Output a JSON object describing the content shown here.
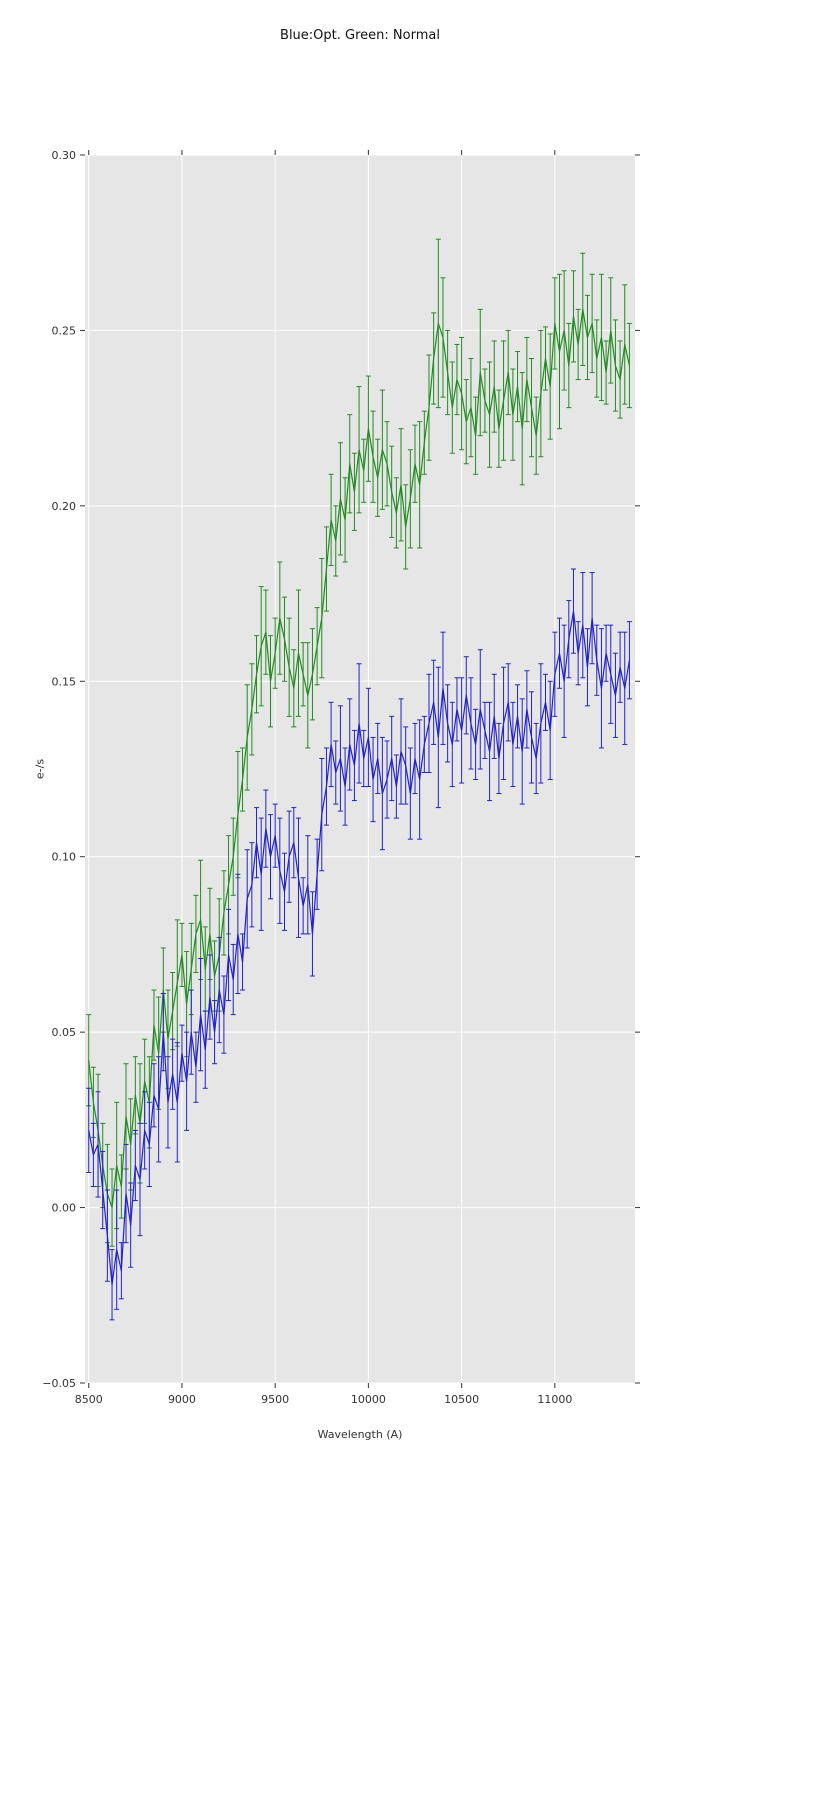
{
  "chart_data": {
    "type": "line",
    "title": "Blue:Opt. Green: Normal",
    "xlabel": "Wavelength (A)",
    "ylabel": "e-/s",
    "xlim": [
      8480,
      11430
    ],
    "ylim": [
      -0.05,
      0.3
    ],
    "grid": true,
    "legend": "none",
    "axes_bg": "#e6e6e6",
    "grid_color": "#ffffff",
    "tick_color": "#333333",
    "xticks": [
      {
        "value": 8500,
        "label": "8500"
      },
      {
        "value": 9000,
        "label": "9000"
      },
      {
        "value": 9500,
        "label": "9500"
      },
      {
        "value": 10000,
        "label": "10000"
      },
      {
        "value": 10500,
        "label": "10500"
      },
      {
        "value": 11000,
        "label": "11000"
      }
    ],
    "yticks": [
      {
        "value": -0.05,
        "label": "−0.05"
      },
      {
        "value": 0.0,
        "label": "0.00"
      },
      {
        "value": 0.05,
        "label": "0.05"
      },
      {
        "value": 0.1,
        "label": "0.10"
      },
      {
        "value": 0.15,
        "label": "0.15"
      },
      {
        "value": 0.2,
        "label": "0.20"
      },
      {
        "value": 0.25,
        "label": "0.25"
      },
      {
        "value": 0.3,
        "label": "0.30"
      }
    ],
    "x": [
      8500,
      8525,
      8550,
      8575,
      8600,
      8625,
      8650,
      8675,
      8700,
      8725,
      8750,
      8775,
      8800,
      8825,
      8850,
      8875,
      8900,
      8925,
      8950,
      8975,
      9000,
      9025,
      9050,
      9075,
      9100,
      9125,
      9150,
      9175,
      9200,
      9225,
      9250,
      9275,
      9300,
      9325,
      9350,
      9375,
      9400,
      9425,
      9450,
      9475,
      9500,
      9525,
      9550,
      9575,
      9600,
      9625,
      9650,
      9675,
      9700,
      9725,
      9750,
      9775,
      9800,
      9825,
      9850,
      9875,
      9900,
      9925,
      9950,
      9975,
      10000,
      10025,
      10050,
      10075,
      10100,
      10125,
      10150,
      10175,
      10200,
      10225,
      10250,
      10275,
      10300,
      10325,
      10350,
      10375,
      10400,
      10425,
      10450,
      10475,
      10500,
      10525,
      10550,
      10575,
      10600,
      10625,
      10650,
      10675,
      10700,
      10725,
      10750,
      10775,
      10800,
      10825,
      10850,
      10875,
      10900,
      10925,
      10950,
      10975,
      11000,
      11025,
      11050,
      11075,
      11100,
      11125,
      11150,
      11175,
      11200,
      11225,
      11250,
      11275,
      11300,
      11325,
      11350,
      11375,
      11400
    ],
    "series": [
      {
        "name": "Normal",
        "color": "#228b22",
        "values": [
          0.042,
          0.03,
          0.022,
          0.012,
          0.004,
          0.0,
          0.012,
          0.006,
          0.026,
          0.018,
          0.032,
          0.024,
          0.036,
          0.03,
          0.052,
          0.044,
          0.062,
          0.048,
          0.056,
          0.064,
          0.072,
          0.058,
          0.068,
          0.078,
          0.082,
          0.068,
          0.078,
          0.066,
          0.072,
          0.084,
          0.092,
          0.1,
          0.112,
          0.122,
          0.134,
          0.142,
          0.152,
          0.16,
          0.164,
          0.15,
          0.158,
          0.168,
          0.162,
          0.154,
          0.148,
          0.158,
          0.152,
          0.146,
          0.152,
          0.16,
          0.168,
          0.182,
          0.196,
          0.19,
          0.202,
          0.196,
          0.212,
          0.204,
          0.216,
          0.21,
          0.222,
          0.214,
          0.208,
          0.216,
          0.212,
          0.204,
          0.198,
          0.206,
          0.194,
          0.202,
          0.212,
          0.206,
          0.218,
          0.228,
          0.242,
          0.252,
          0.248,
          0.238,
          0.228,
          0.236,
          0.232,
          0.224,
          0.228,
          0.22,
          0.238,
          0.23,
          0.226,
          0.234,
          0.222,
          0.23,
          0.238,
          0.226,
          0.234,
          0.222,
          0.236,
          0.228,
          0.22,
          0.232,
          0.242,
          0.234,
          0.252,
          0.244,
          0.25,
          0.24,
          0.254,
          0.246,
          0.256,
          0.248,
          0.252,
          0.242,
          0.248,
          0.238,
          0.25,
          0.24,
          0.236,
          0.246,
          0.24
        ],
        "yerr": [
          0.013,
          0.01,
          0.016,
          0.012,
          0.014,
          0.011,
          0.018,
          0.009,
          0.015,
          0.013,
          0.011,
          0.017,
          0.012,
          0.013,
          0.01,
          0.016,
          0.012,
          0.014,
          0.011,
          0.018,
          0.009,
          0.015,
          0.013,
          0.011,
          0.017,
          0.012,
          0.013,
          0.01,
          0.016,
          0.012,
          0.014,
          0.011,
          0.018,
          0.009,
          0.015,
          0.013,
          0.011,
          0.017,
          0.012,
          0.013,
          0.01,
          0.016,
          0.012,
          0.014,
          0.011,
          0.018,
          0.009,
          0.015,
          0.013,
          0.011,
          0.017,
          0.012,
          0.013,
          0.01,
          0.016,
          0.012,
          0.014,
          0.011,
          0.018,
          0.009,
          0.015,
          0.013,
          0.011,
          0.017,
          0.012,
          0.013,
          0.01,
          0.016,
          0.012,
          0.014,
          0.011,
          0.018,
          0.009,
          0.015,
          0.013,
          0.024,
          0.017,
          0.012,
          0.013,
          0.01,
          0.016,
          0.012,
          0.014,
          0.011,
          0.018,
          0.009,
          0.015,
          0.013,
          0.011,
          0.017,
          0.012,
          0.013,
          0.01,
          0.016,
          0.012,
          0.014,
          0.011,
          0.018,
          0.009,
          0.015,
          0.013,
          0.022,
          0.017,
          0.012,
          0.013,
          0.01,
          0.016,
          0.012,
          0.014,
          0.011,
          0.018,
          0.009,
          0.015,
          0.013,
          0.011,
          0.017,
          0.012
        ]
      },
      {
        "name": "Opt",
        "color": "#2222cc",
        "values": [
          0.022,
          0.015,
          0.018,
          0.005,
          -0.008,
          -0.022,
          -0.012,
          -0.018,
          0.004,
          -0.005,
          0.012,
          0.008,
          0.022,
          0.018,
          0.032,
          0.028,
          0.05,
          0.03,
          0.038,
          0.03,
          0.044,
          0.036,
          0.05,
          0.04,
          0.055,
          0.045,
          0.06,
          0.05,
          0.062,
          0.055,
          0.072,
          0.065,
          0.078,
          0.07,
          0.088,
          0.092,
          0.104,
          0.095,
          0.108,
          0.1,
          0.106,
          0.096,
          0.09,
          0.1,
          0.104,
          0.094,
          0.086,
          0.092,
          0.078,
          0.095,
          0.112,
          0.12,
          0.132,
          0.124,
          0.128,
          0.12,
          0.132,
          0.126,
          0.138,
          0.128,
          0.134,
          0.122,
          0.128,
          0.118,
          0.122,
          0.128,
          0.12,
          0.13,
          0.126,
          0.118,
          0.128,
          0.122,
          0.132,
          0.138,
          0.144,
          0.134,
          0.148,
          0.138,
          0.132,
          0.142,
          0.136,
          0.146,
          0.138,
          0.132,
          0.142,
          0.136,
          0.13,
          0.14,
          0.128,
          0.138,
          0.144,
          0.132,
          0.14,
          0.13,
          0.142,
          0.134,
          0.128,
          0.138,
          0.144,
          0.136,
          0.152,
          0.158,
          0.15,
          0.162,
          0.17,
          0.158,
          0.166,
          0.154,
          0.168,
          0.156,
          0.148,
          0.158,
          0.152,
          0.146,
          0.154,
          0.148,
          0.156
        ],
        "yerr": [
          0.012,
          0.009,
          0.015,
          0.011,
          0.013,
          0.01,
          0.017,
          0.008,
          0.014,
          0.012,
          0.01,
          0.016,
          0.011,
          0.012,
          0.009,
          0.015,
          0.011,
          0.013,
          0.01,
          0.017,
          0.008,
          0.014,
          0.012,
          0.01,
          0.016,
          0.011,
          0.012,
          0.009,
          0.015,
          0.011,
          0.013,
          0.01,
          0.017,
          0.008,
          0.014,
          0.012,
          0.01,
          0.016,
          0.011,
          0.012,
          0.009,
          0.015,
          0.011,
          0.013,
          0.01,
          0.017,
          0.008,
          0.014,
          0.012,
          0.01,
          0.016,
          0.011,
          0.012,
          0.009,
          0.015,
          0.011,
          0.013,
          0.01,
          0.017,
          0.008,
          0.014,
          0.012,
          0.01,
          0.016,
          0.011,
          0.012,
          0.009,
          0.015,
          0.011,
          0.013,
          0.01,
          0.017,
          0.008,
          0.014,
          0.012,
          0.02,
          0.016,
          0.011,
          0.012,
          0.009,
          0.015,
          0.011,
          0.013,
          0.01,
          0.017,
          0.008,
          0.014,
          0.012,
          0.01,
          0.016,
          0.011,
          0.012,
          0.009,
          0.015,
          0.011,
          0.013,
          0.01,
          0.017,
          0.008,
          0.014,
          0.012,
          0.01,
          0.016,
          0.011,
          0.012,
          0.009,
          0.015,
          0.011,
          0.013,
          0.01,
          0.017,
          0.008,
          0.014,
          0.012,
          0.01,
          0.016,
          0.011
        ]
      }
    ]
  }
}
